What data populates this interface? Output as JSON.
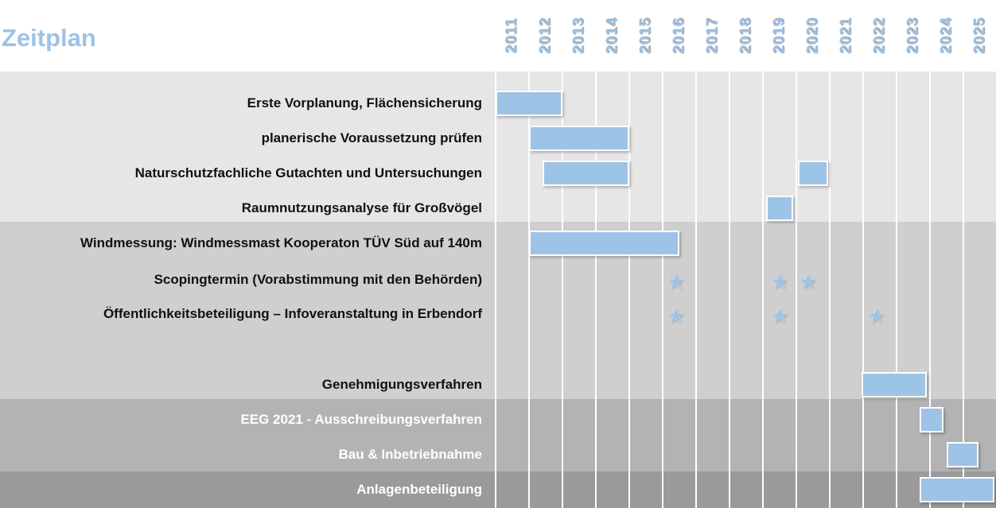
{
  "chart_data": {
    "type": "gantt",
    "title": "Zeitplan",
    "years": [
      "2011",
      "2012",
      "2013",
      "2014",
      "2015",
      "2016",
      "2017",
      "2018",
      "2019",
      "2020",
      "2021",
      "2022",
      "2023",
      "2024",
      "2025"
    ],
    "xlim": [
      2011,
      2026
    ],
    "colors": {
      "bar": "#9dc3e6",
      "band1": "#e6e6e6",
      "band2": "#cfcfcf",
      "band3": "#b3b3b3",
      "band4": "#9a9a9a"
    },
    "tasks": [
      {
        "label": "Erste Vorplanung, Flächensicherung",
        "band": 1,
        "bars": [
          [
            2011,
            2013
          ]
        ],
        "stars": []
      },
      {
        "label": "planerische Voraussetzung prüfen",
        "band": 1,
        "bars": [
          [
            2012,
            2015
          ]
        ],
        "stars": []
      },
      {
        "label": "Naturschutzfachliche Gutachten und Untersuchungen",
        "band": 1,
        "bars": [
          [
            2012.4,
            2015
          ],
          [
            2020.05,
            2020.95
          ]
        ],
        "stars": []
      },
      {
        "label": "Raumnutzungsanalyse für Großvögel",
        "band": 1,
        "bars": [
          [
            2019.1,
            2019.9
          ]
        ],
        "stars": []
      },
      {
        "label": "Windmessung: Windmessmast Kooperaton TÜV Süd auf 140m",
        "band": 2,
        "bars": [
          [
            2012,
            2016.5
          ]
        ],
        "stars": []
      },
      {
        "label": "Scopingtermin (Vorabstimmung mit den Behörden)",
        "band": 2,
        "bars": [],
        "stars": [
          2016.4,
          2019.5,
          2020.35
        ]
      },
      {
        "label": "Öffentlichkeitsbeteiligung – Infoveranstaltung in Erbendorf",
        "band": 2,
        "bars": [],
        "stars": [
          2016.4,
          2019.5,
          2022.4
        ]
      },
      {
        "label": "",
        "band": 2,
        "bars": [],
        "stars": []
      },
      {
        "label": "Genehmigungsverfahren",
        "band": 2,
        "bars": [
          [
            2021.95,
            2023.9
          ]
        ],
        "stars": []
      },
      {
        "label": "EEG 2021 - Ausschreibungsverfahren",
        "band": 3,
        "bars": [
          [
            2023.7,
            2024.4
          ]
        ],
        "stars": []
      },
      {
        "label": "Bau & Inbetriebnahme",
        "band": 3,
        "bars": [
          [
            2024.5,
            2025.45
          ]
        ],
        "stars": []
      },
      {
        "label": "Anlagenbeteiligung",
        "band": 4,
        "bars": [
          [
            2023.7,
            2026
          ]
        ],
        "stars": []
      }
    ]
  }
}
